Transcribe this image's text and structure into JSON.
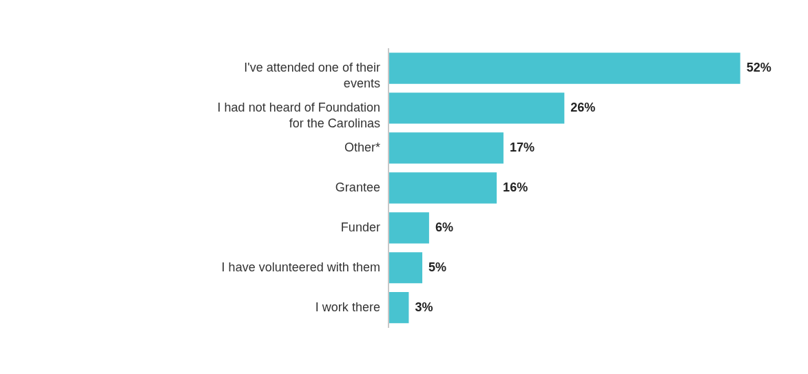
{
  "chart_data": {
    "type": "bar",
    "orientation": "horizontal",
    "categories": [
      "I've attended one of their events",
      "I had not heard of Foundation for the Carolinas",
      "Other*",
      "Grantee",
      "Funder",
      "I have volunteered with them",
      "I work there"
    ],
    "values": [
      52,
      26,
      17,
      16,
      6,
      5,
      3
    ],
    "value_labels": [
      "52%",
      "26%",
      "17%",
      "16%",
      "6%",
      "5%",
      "3%"
    ],
    "color": "#48c3d0"
  }
}
